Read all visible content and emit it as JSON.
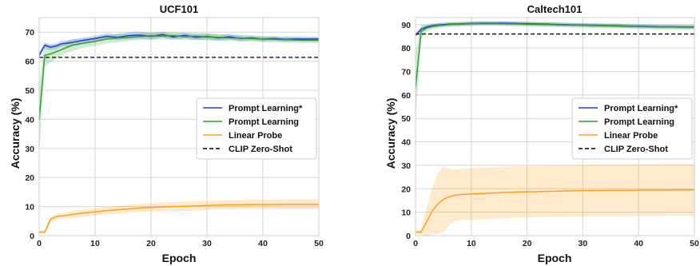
{
  "chart_data": [
    {
      "type": "line",
      "title": "UCF101",
      "xlabel": "Epoch",
      "ylabel": "Accuracy (%)",
      "xlim": [
        0,
        50
      ],
      "ylim": [
        0,
        75
      ],
      "xticks": [
        0,
        10,
        20,
        30,
        40,
        50
      ],
      "yticks": [
        0,
        10,
        20,
        30,
        40,
        50,
        60,
        70
      ],
      "grid": true,
      "legend_position": "center-right",
      "series": [
        {
          "name": "Prompt Learning*",
          "color": "#1f3fd6",
          "x": [
            0,
            1,
            2,
            3,
            4,
            5,
            6,
            8,
            10,
            12,
            14,
            16,
            18,
            20,
            22,
            24,
            26,
            28,
            30,
            32,
            34,
            36,
            38,
            40,
            42,
            44,
            46,
            48,
            50
          ],
          "y": [
            62,
            65.5,
            64.8,
            65.2,
            66,
            66.2,
            66.5,
            67.2,
            67.8,
            68.5,
            68.2,
            68.8,
            69.0,
            68.5,
            69.2,
            68.3,
            68.9,
            68.2,
            68.5,
            68.0,
            68.4,
            67.8,
            68.0,
            67.6,
            67.8,
            67.5,
            67.6,
            67.6,
            67.6
          ],
          "band": [
            1.0,
            1.0,
            1.0,
            1.0,
            1.0,
            1.0,
            1.0,
            1.0,
            1.0,
            1.0,
            1.0,
            1.2,
            1.2,
            1.2,
            1.0,
            1.0,
            1.0,
            1.0,
            1.0,
            1.0,
            1.0,
            1.0,
            0.8,
            0.8,
            0.8,
            0.8,
            0.8,
            0.8,
            0.8
          ]
        },
        {
          "name": "Prompt Learning",
          "color": "#2ca02c",
          "x": [
            0,
            1,
            2,
            3,
            4,
            5,
            6,
            8,
            10,
            12,
            14,
            16,
            18,
            20,
            22,
            24,
            26,
            28,
            30,
            32,
            34,
            36,
            38,
            40,
            42,
            44,
            46,
            48,
            50
          ],
          "y": [
            40,
            62,
            62.5,
            63.2,
            64.0,
            64.8,
            65.5,
            66.2,
            66.8,
            67.6,
            68.0,
            68.2,
            68.5,
            68.7,
            68.6,
            68.8,
            68.4,
            68.6,
            68.3,
            68.2,
            68.0,
            67.9,
            67.8,
            67.6,
            67.5,
            67.4,
            67.3,
            67.2,
            67.2
          ],
          "band": [
            12,
            4,
            3,
            2.5,
            2,
            2,
            2,
            1.5,
            1.5,
            1.5,
            1.5,
            1.2,
            1.2,
            1.2,
            1.2,
            1.2,
            1.2,
            1.2,
            1.2,
            1.2,
            1.0,
            1.0,
            1.0,
            1.0,
            1.0,
            1.0,
            1.0,
            1.0,
            1.0
          ]
        },
        {
          "name": "Linear Probe",
          "color": "#ff9f1c",
          "x": [
            0,
            1,
            2,
            3,
            4,
            5,
            6,
            8,
            10,
            12,
            14,
            16,
            18,
            20,
            22,
            24,
            26,
            28,
            30,
            32,
            34,
            36,
            38,
            40,
            42,
            44,
            46,
            48,
            50
          ],
          "y": [
            1.2,
            1.2,
            5.5,
            6.5,
            6.8,
            7.0,
            7.3,
            7.8,
            8.2,
            8.6,
            8.9,
            9.2,
            9.5,
            9.7,
            9.9,
            10.0,
            10.1,
            10.2,
            10.4,
            10.5,
            10.6,
            10.6,
            10.7,
            10.7,
            10.7,
            10.8,
            10.8,
            10.8,
            10.8
          ],
          "band": [
            0.5,
            0.5,
            1.0,
            1.0,
            1.0,
            1.0,
            1.2,
            1.2,
            1.3,
            1.3,
            1.4,
            1.4,
            1.5,
            1.5,
            1.5,
            1.6,
            1.6,
            1.6,
            1.6,
            1.6,
            1.6,
            1.6,
            1.7,
            1.7,
            1.7,
            1.7,
            1.7,
            1.7,
            1.7
          ]
        },
        {
          "name": "CLIP Zero-Shot",
          "color": "#000000",
          "dashed": true,
          "x": [
            0,
            50
          ],
          "y": [
            61.3,
            61.3
          ]
        }
      ]
    },
    {
      "type": "line",
      "title": "Caltech101",
      "xlabel": "Epoch",
      "ylabel": "Accuracy (%)",
      "xlim": [
        0,
        50
      ],
      "ylim": [
        0,
        93
      ],
      "xticks": [
        0,
        10,
        20,
        30,
        40,
        50
      ],
      "yticks": [
        0,
        10,
        20,
        30,
        40,
        50,
        60,
        70,
        80,
        90
      ],
      "grid": true,
      "legend_position": "center-right",
      "series": [
        {
          "name": "Prompt Learning*",
          "color": "#1f3fd6",
          "x": [
            0,
            1,
            2,
            3,
            4,
            5,
            6,
            8,
            10,
            12,
            14,
            16,
            18,
            20,
            22,
            24,
            26,
            28,
            30,
            32,
            34,
            36,
            38,
            40,
            42,
            44,
            46,
            48,
            50
          ],
          "y": [
            85.5,
            88.0,
            89.0,
            89.5,
            89.8,
            90.0,
            90.2,
            90.3,
            90.5,
            90.6,
            90.6,
            90.6,
            90.5,
            90.4,
            90.3,
            90.2,
            90.0,
            89.9,
            89.8,
            89.7,
            89.6,
            89.5,
            89.4,
            89.3,
            89.2,
            89.1,
            89.1,
            89.0,
            89.0
          ],
          "band": [
            1.0,
            1.0,
            0.8,
            0.8,
            0.8,
            0.8,
            0.8,
            0.8,
            0.8,
            0.8,
            0.8,
            0.8,
            0.8,
            0.8,
            0.8,
            0.8,
            0.8,
            0.8,
            0.8,
            0.8,
            0.8,
            0.8,
            0.8,
            0.8,
            0.8,
            0.8,
            0.8,
            0.8,
            0.8
          ]
        },
        {
          "name": "Prompt Learning",
          "color": "#2ca02c",
          "x": [
            0,
            1,
            2,
            3,
            4,
            5,
            6,
            8,
            10,
            12,
            14,
            16,
            18,
            20,
            22,
            24,
            26,
            28,
            30,
            32,
            34,
            36,
            38,
            40,
            42,
            44,
            46,
            48,
            50
          ],
          "y": [
            63,
            87.0,
            88.5,
            89.2,
            89.6,
            89.8,
            90.0,
            90.2,
            90.4,
            90.5,
            90.5,
            90.4,
            90.3,
            90.2,
            90.1,
            90.0,
            89.9,
            89.8,
            89.7,
            89.6,
            89.5,
            89.4,
            89.3,
            89.2,
            89.1,
            89.0,
            89.0,
            88.9,
            88.9
          ],
          "band": [
            14,
            3,
            1.5,
            1.2,
            1.0,
            1.0,
            1.0,
            1.0,
            1.0,
            1.0,
            1.0,
            1.0,
            1.0,
            1.0,
            1.0,
            1.0,
            1.0,
            1.0,
            1.0,
            1.0,
            1.0,
            1.0,
            1.0,
            1.0,
            1.0,
            1.0,
            1.0,
            1.0,
            1.0
          ]
        },
        {
          "name": "Linear Probe",
          "color": "#ff9f1c",
          "x": [
            0,
            1,
            2,
            3,
            4,
            5,
            6,
            7,
            8,
            10,
            12,
            14,
            16,
            18,
            20,
            22,
            24,
            26,
            28,
            30,
            32,
            34,
            36,
            38,
            40,
            42,
            44,
            46,
            48,
            50
          ],
          "y": [
            1.5,
            1.5,
            6,
            10.5,
            13.5,
            15.5,
            16.5,
            17.2,
            17.5,
            17.8,
            18.0,
            18.2,
            18.4,
            18.6,
            18.7,
            18.8,
            18.9,
            19.0,
            19.1,
            19.2,
            19.2,
            19.3,
            19.3,
            19.3,
            19.4,
            19.4,
            19.4,
            19.5,
            19.5,
            19.5
          ],
          "band": [
            1,
            1,
            6,
            10,
            13,
            14,
            12,
            11,
            11,
            11,
            11,
            11,
            11,
            11,
            11,
            11,
            11,
            11,
            11,
            11,
            11,
            11,
            11,
            11,
            11,
            11,
            11,
            11,
            11,
            11
          ]
        },
        {
          "name": "CLIP Zero-Shot",
          "color": "#000000",
          "dashed": true,
          "x": [
            0,
            50
          ],
          "y": [
            86.0,
            86.0
          ]
        }
      ]
    }
  ]
}
